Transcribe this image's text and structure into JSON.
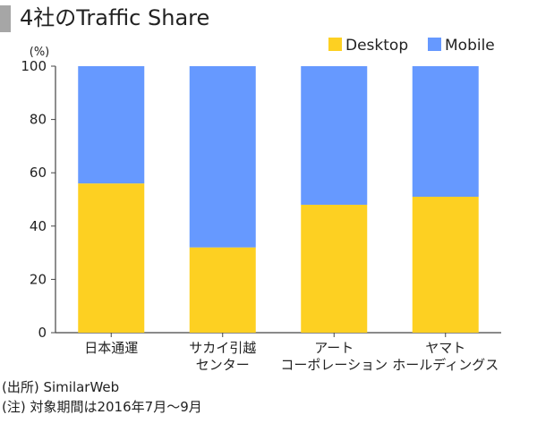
{
  "title": "4社のTraffic Share",
  "notes": {
    "source": "(出所) SimilarWeb",
    "period": "(注) 対象期間は2016年7月〜9月"
  },
  "chart_data": {
    "type": "bar",
    "stacked": true,
    "unit_label": "(%)",
    "ylim": [
      0,
      100
    ],
    "yticks": [
      "0",
      "20",
      "40",
      "60",
      "80",
      "100"
    ],
    "grid": false,
    "legend_position": "top-right",
    "categories": [
      [
        "日本通運"
      ],
      [
        "サカイ引越",
        "センター"
      ],
      [
        "アート",
        "コーポレーション"
      ],
      [
        "ヤマト",
        "ホールディングス"
      ]
    ],
    "series": [
      {
        "name": "Desktop",
        "color": "#fdd022",
        "values": [
          56,
          32,
          48,
          51
        ]
      },
      {
        "name": "Mobile",
        "color": "#6699ff",
        "values": [
          44,
          68,
          52,
          49
        ]
      }
    ]
  }
}
